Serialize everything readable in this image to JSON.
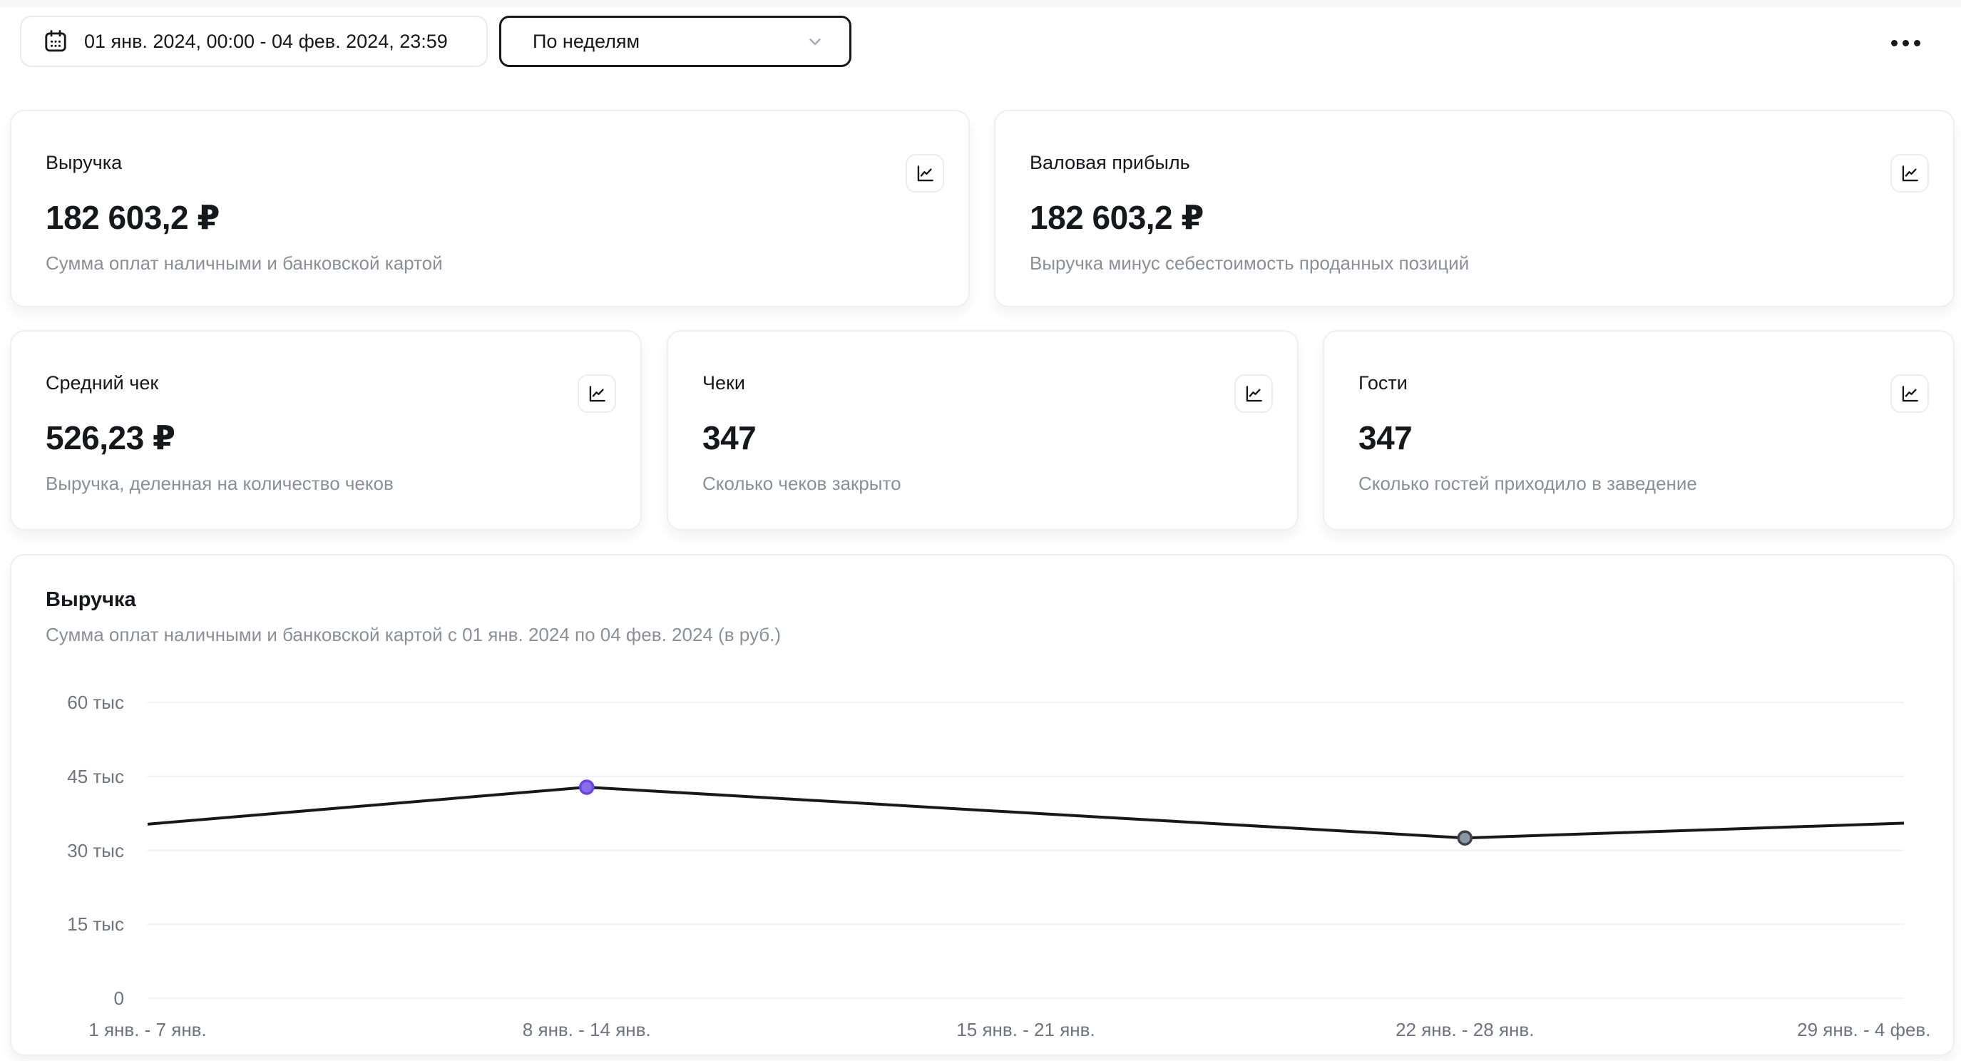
{
  "topbar": {
    "date_range": "01 янв. 2024, 00:00 - 04 фев. 2024, 23:59",
    "interval_selector": {
      "value": "По неделям"
    },
    "icons": {
      "date": "calendar-icon",
      "interval": "chevron-down-icon",
      "more": "ellipsis-icon",
      "card_action": "line-chart-icon"
    }
  },
  "summary_cards": [
    {
      "title": "Выручка",
      "value": "182 603,2 ₽",
      "description": "Сумма оплат наличными и банковской картой"
    },
    {
      "title": "Валовая прибыль",
      "value": "182 603,2 ₽",
      "description": "Выручка минус себестоимость проданных позиций"
    },
    {
      "title": "Средний чек",
      "value": "526,23 ₽",
      "description": "Выручка, деленная на количество чеков"
    },
    {
      "title": "Чеки",
      "value": "347",
      "description": "Сколько чеков закрыто"
    },
    {
      "title": "Гости",
      "value": "347",
      "description": "Сколько гостей приходило в заведение"
    }
  ],
  "chart_card": {
    "title": "Выручка",
    "subtitle": "Сумма оплат наличными и банковской картой с 01 янв. 2024 по 04 фев. 2024 (в руб.)"
  },
  "chart_data": {
    "type": "line",
    "title": "Выручка",
    "unit": "руб.",
    "categories": [
      "1 янв. - 7 янв.",
      "8 янв. - 14 янв.",
      "15 янв. - 21 янв.",
      "22 янв. - 28 янв.",
      "29 янв. - 4 фев."
    ],
    "values": [
      35300,
      42800,
      37600,
      32500,
      35500
    ],
    "ylim": [
      0,
      60000
    ],
    "y_ticks": [
      {
        "value": 60000,
        "label": "60 тыс"
      },
      {
        "value": 45000,
        "label": "45 тыс"
      },
      {
        "value": 30000,
        "label": "30 тыс"
      },
      {
        "value": 15000,
        "label": "15 тыс"
      },
      {
        "value": 0,
        "label": "0"
      }
    ],
    "grid": true,
    "legend": "none",
    "line_color": "#17181c",
    "markers": [
      {
        "index": 1,
        "type": "max",
        "fill": "#8a6cef",
        "stroke": "#6d44e0"
      },
      {
        "index": 3,
        "type": "min",
        "fill": "#8d97a4",
        "stroke": "#3c414a"
      }
    ]
  }
}
